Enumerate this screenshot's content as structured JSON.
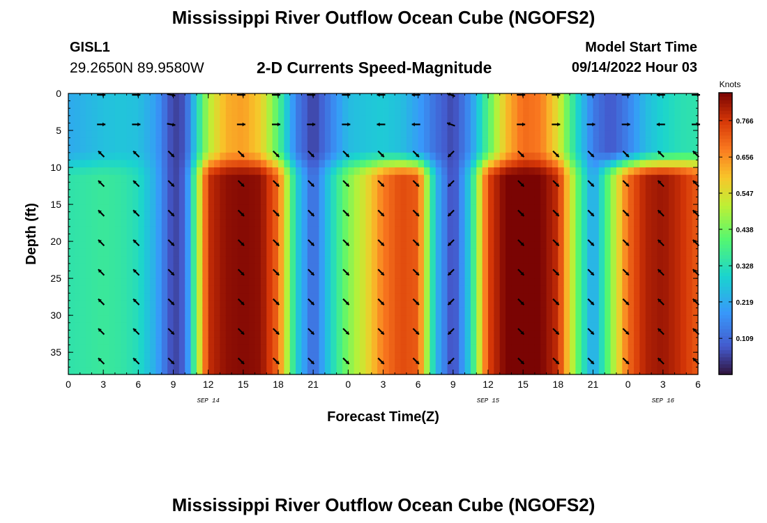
{
  "header": {
    "title": "Mississippi River Outflow Ocean Cube (NGOFS2)",
    "station": "GISL1",
    "coords": "29.2650N  89.9580W",
    "subtitle": "2-D Currents Speed-Magnitude",
    "model_start_label": "Model Start Time",
    "model_start_value": "09/14/2022 Hour 03"
  },
  "footer": {
    "title": "Mississippi River Outflow Ocean Cube (NGOFS2)"
  },
  "chart_data": {
    "type": "heatmap",
    "title": "2-D Currents Speed-Magnitude",
    "xlabel": "Forecast Time(Z)",
    "ylabel": "Depth (ft)",
    "xlim": [
      0,
      54
    ],
    "ylim": [
      0,
      38
    ],
    "y_inverted": true,
    "x_tick_values": [
      0,
      3,
      6,
      9,
      12,
      15,
      18,
      21,
      24,
      27,
      30,
      33,
      36,
      39,
      42,
      45,
      48,
      51,
      54
    ],
    "x_tick_labels": [
      "0",
      "3",
      "6",
      "9",
      "12",
      "15",
      "18",
      "21",
      "0",
      "3",
      "6",
      "9",
      "12",
      "15",
      "18",
      "21",
      "0",
      "3",
      "6"
    ],
    "y_tick_values": [
      0,
      5,
      10,
      15,
      20,
      25,
      30,
      35
    ],
    "y_tick_labels": [
      "0",
      "5",
      "10",
      "15",
      "20",
      "25",
      "30",
      "35"
    ],
    "date_labels": [
      {
        "x": 12,
        "label": "SEP 14"
      },
      {
        "x": 36,
        "label": "SEP 15"
      },
      {
        "x": 51,
        "label": "SEP 16"
      }
    ],
    "colorbar": {
      "title": "Knots",
      "min": 0.0,
      "max": 0.85,
      "ticks": [
        0.109,
        0.219,
        0.328,
        0.438,
        0.547,
        0.656,
        0.766
      ]
    },
    "surface_layer_max_depth": 8,
    "time_profile": {
      "times": [
        0,
        1.5,
        3,
        4.5,
        6,
        7.5,
        9,
        10,
        11,
        12,
        13.5,
        15,
        16.5,
        18,
        19.5,
        21,
        22.5,
        24,
        25.5,
        27,
        28.5,
        30,
        31.5,
        33,
        34.5,
        36,
        37.5,
        39,
        40.5,
        42,
        43.5,
        45,
        46.5,
        48,
        49.5,
        51,
        52.5,
        54
      ],
      "surface_speed": [
        0.22,
        0.24,
        0.26,
        0.27,
        0.26,
        0.2,
        0.05,
        0.08,
        0.3,
        0.5,
        0.62,
        0.64,
        0.58,
        0.4,
        0.15,
        0.05,
        0.15,
        0.25,
        0.27,
        0.28,
        0.26,
        0.2,
        0.12,
        0.06,
        0.18,
        0.4,
        0.6,
        0.7,
        0.68,
        0.55,
        0.32,
        0.14,
        0.08,
        0.15,
        0.25,
        0.3,
        0.33,
        0.34
      ],
      "deep_speed": [
        0.34,
        0.35,
        0.36,
        0.35,
        0.32,
        0.22,
        0.05,
        0.1,
        0.45,
        0.78,
        0.83,
        0.84,
        0.83,
        0.7,
        0.3,
        0.1,
        0.3,
        0.45,
        0.55,
        0.68,
        0.74,
        0.72,
        0.25,
        0.05,
        0.3,
        0.75,
        0.85,
        0.86,
        0.85,
        0.78,
        0.45,
        0.2,
        0.45,
        0.7,
        0.8,
        0.82,
        0.78,
        0.72
      ]
    },
    "vector_times": [
      3,
      6,
      9,
      15,
      18,
      21,
      24,
      27,
      30,
      33,
      39,
      42,
      45,
      48,
      51,
      54
    ],
    "vector_depths": [
      0,
      4,
      8,
      12,
      16,
      20,
      24,
      28,
      32,
      36
    ],
    "vectors_surface_angle_deg": [
      0,
      0,
      10,
      0,
      0,
      0,
      0,
      180,
      180,
      200,
      0,
      0,
      0,
      0,
      180,
      0
    ],
    "vectors_deep_angle_deg": [
      225,
      225,
      45,
      45,
      45,
      45,
      45,
      45,
      45,
      135,
      45,
      45,
      45,
      45,
      225,
      225
    ]
  }
}
